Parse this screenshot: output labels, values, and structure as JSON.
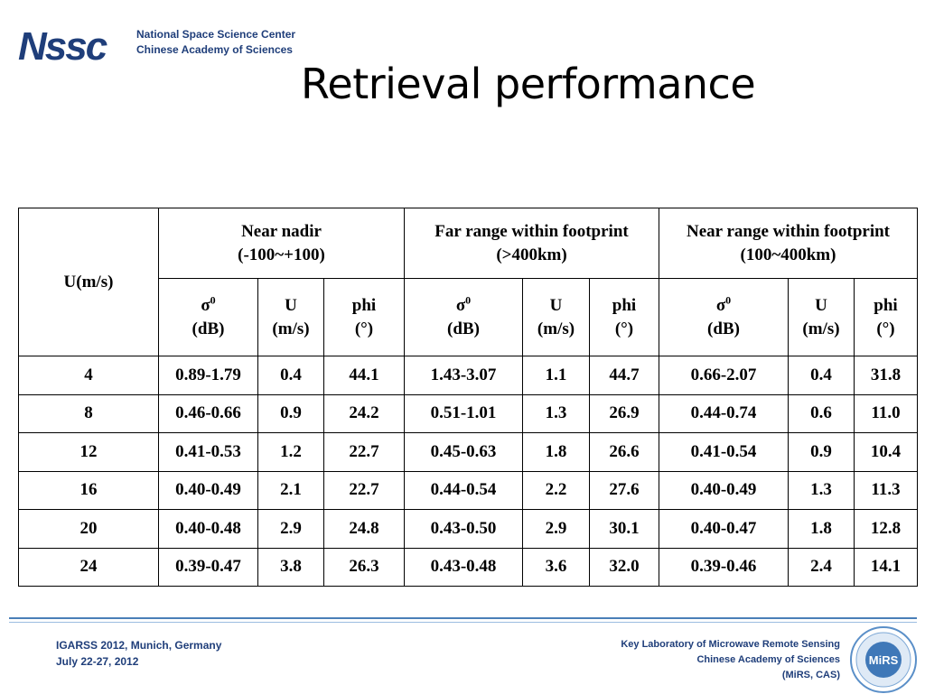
{
  "header": {
    "logo_text": "Nssc",
    "org_line1": "National Space Science Center",
    "org_line2": "Chinese Academy of Sciences"
  },
  "title": "Retrieval performance",
  "table": {
    "row_header": "U(m/s)",
    "groups": [
      {
        "name": "Near nadir",
        "range": "(-100~+100)"
      },
      {
        "name": "Far range within footprint",
        "range": "(>400km)"
      },
      {
        "name": "Near range within footprint",
        "range": "(100~400km)"
      }
    ],
    "subcols": [
      {
        "name": "σ",
        "sup": "0",
        "unit": "(dB)"
      },
      {
        "name": "U",
        "sup": "",
        "unit": "(m/s)"
      },
      {
        "name": "phi",
        "sup": "",
        "unit": "(°)"
      }
    ],
    "rows": [
      [
        "4",
        "0.89-1.79",
        "0.4",
        "44.1",
        "1.43-3.07",
        "1.1",
        "44.7",
        "0.66-2.07",
        "0.4",
        "31.8"
      ],
      [
        "8",
        "0.46-0.66",
        "0.9",
        "24.2",
        "0.51-1.01",
        "1.3",
        "26.9",
        "0.44-0.74",
        "0.6",
        "11.0"
      ],
      [
        "12",
        "0.41-0.53",
        "1.2",
        "22.7",
        "0.45-0.63",
        "1.8",
        "26.6",
        "0.41-0.54",
        "0.9",
        "10.4"
      ],
      [
        "16",
        "0.40-0.49",
        "2.1",
        "22.7",
        "0.44-0.54",
        "2.2",
        "27.6",
        "0.40-0.49",
        "1.3",
        "11.3"
      ],
      [
        "20",
        "0.40-0.48",
        "2.9",
        "24.8",
        "0.43-0.50",
        "2.9",
        "30.1",
        "0.40-0.47",
        "1.8",
        "12.8"
      ],
      [
        "24",
        "0.39-0.47",
        "3.8",
        "26.3",
        "0.43-0.48",
        "3.6",
        "32.0",
        "0.39-0.46",
        "2.4",
        "14.1"
      ]
    ]
  },
  "footer": {
    "left_line1": "IGARSS 2012, Munich, Germany",
    "left_line2": "July 22-27, 2012",
    "right_line1": "Key Laboratory of Microwave Remote Sensing",
    "right_line2": "Chinese Academy of Sciences",
    "right_line3": "(MiRS, CAS)",
    "seal_text": "MiRS"
  },
  "colors": {
    "brand_blue": "#1f3e7a",
    "rule_blue": "#4a7fb8"
  }
}
